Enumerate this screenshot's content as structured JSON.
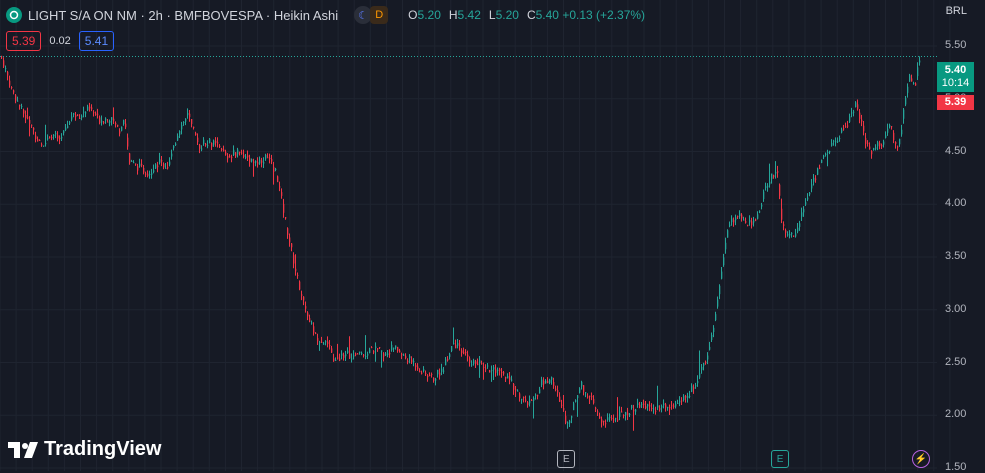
{
  "header": {
    "title": "LIGHT S/A ON NM · 2h · BMFBOVESPA · Heikin Ashi",
    "market_icon_1": "moon-icon",
    "market_icon_2": "D",
    "ohlc": [
      {
        "k": "O",
        "v": "5.20"
      },
      {
        "k": "H",
        "v": "5.42"
      },
      {
        "k": "L",
        "v": "5.20"
      },
      {
        "k": "C",
        "v": "5.40 +0.13 (+2.37%)"
      }
    ]
  },
  "trade": {
    "sell": "5.39",
    "spread": "0.02",
    "buy": "5.41"
  },
  "currency": "BRL",
  "price_labels": {
    "last": "5.40",
    "countdown": "10:14",
    "bid": "5.39"
  },
  "events": [
    {
      "label": "E",
      "x": 0.574
    },
    {
      "label": "E",
      "x": 0.791
    },
    {
      "label": "⚡",
      "x": 0.934
    }
  ],
  "brand": "TradingView",
  "colors": {
    "up": "#26a69a",
    "down": "#f23645",
    "bg": "#161a25",
    "grid": "#1f2430"
  },
  "chart_data": {
    "type": "candlestick",
    "style": "Heikin Ashi",
    "y_ticks": [
      "5.50",
      "5.00",
      "4.50",
      "4.00",
      "3.50",
      "3.00",
      "2.50",
      "2.00",
      "1.50"
    ],
    "ylim": [
      1.5,
      5.5
    ],
    "last_price": 5.4,
    "path": [
      [
        0,
        5.4
      ],
      [
        0.01,
        5.1
      ],
      [
        0.02,
        4.9
      ],
      [
        0.03,
        4.75
      ],
      [
        0.04,
        4.55
      ],
      [
        0.05,
        4.68
      ],
      [
        0.06,
        4.6
      ],
      [
        0.07,
        4.82
      ],
      [
        0.08,
        4.85
      ],
      [
        0.09,
        4.9
      ],
      [
        0.1,
        4.8
      ],
      [
        0.11,
        4.82
      ],
      [
        0.12,
        4.7
      ],
      [
        0.125,
        4.85
      ],
      [
        0.13,
        4.4
      ],
      [
        0.14,
        4.35
      ],
      [
        0.15,
        4.3
      ],
      [
        0.16,
        4.4
      ],
      [
        0.17,
        4.35
      ],
      [
        0.18,
        4.7
      ],
      [
        0.19,
        4.85
      ],
      [
        0.2,
        4.55
      ],
      [
        0.21,
        4.6
      ],
      [
        0.22,
        4.55
      ],
      [
        0.23,
        4.45
      ],
      [
        0.24,
        4.5
      ],
      [
        0.25,
        4.45
      ],
      [
        0.26,
        4.4
      ],
      [
        0.27,
        4.45
      ],
      [
        0.28,
        4.3
      ],
      [
        0.29,
        3.8
      ],
      [
        0.3,
        3.35
      ],
      [
        0.31,
        3.0
      ],
      [
        0.32,
        2.75
      ],
      [
        0.33,
        2.7
      ],
      [
        0.34,
        2.5
      ],
      [
        0.35,
        2.6
      ],
      [
        0.36,
        2.55
      ],
      [
        0.37,
        2.6
      ],
      [
        0.38,
        2.62
      ],
      [
        0.39,
        2.58
      ],
      [
        0.4,
        2.65
      ],
      [
        0.41,
        2.55
      ],
      [
        0.42,
        2.5
      ],
      [
        0.43,
        2.4
      ],
      [
        0.44,
        2.35
      ],
      [
        0.45,
        2.45
      ],
      [
        0.46,
        2.7
      ],
      [
        0.47,
        2.58
      ],
      [
        0.48,
        2.5
      ],
      [
        0.49,
        2.48
      ],
      [
        0.5,
        2.42
      ],
      [
        0.51,
        2.38
      ],
      [
        0.52,
        2.3
      ],
      [
        0.53,
        2.15
      ],
      [
        0.54,
        2.1
      ],
      [
        0.55,
        2.3
      ],
      [
        0.56,
        2.35
      ],
      [
        0.57,
        2.1
      ],
      [
        0.575,
        1.95
      ],
      [
        0.58,
        2.0
      ],
      [
        0.59,
        2.3
      ],
      [
        0.6,
        2.15
      ],
      [
        0.61,
        1.95
      ],
      [
        0.62,
        1.95
      ],
      [
        0.63,
        2.0
      ],
      [
        0.64,
        2.05
      ],
      [
        0.65,
        2.1
      ],
      [
        0.66,
        2.08
      ],
      [
        0.67,
        2.05
      ],
      [
        0.68,
        2.1
      ],
      [
        0.69,
        2.1
      ],
      [
        0.7,
        2.2
      ],
      [
        0.71,
        2.35
      ],
      [
        0.72,
        2.6
      ],
      [
        0.73,
        3.1
      ],
      [
        0.735,
        3.5
      ],
      [
        0.74,
        3.8
      ],
      [
        0.75,
        3.9
      ],
      [
        0.76,
        3.8
      ],
      [
        0.77,
        3.9
      ],
      [
        0.78,
        4.2
      ],
      [
        0.79,
        4.35
      ],
      [
        0.795,
        3.8
      ],
      [
        0.8,
        3.7
      ],
      [
        0.81,
        3.75
      ],
      [
        0.82,
        4.05
      ],
      [
        0.83,
        4.3
      ],
      [
        0.84,
        4.5
      ],
      [
        0.85,
        4.6
      ],
      [
        0.86,
        4.75
      ],
      [
        0.87,
        4.95
      ],
      [
        0.875,
        4.8
      ],
      [
        0.88,
        4.6
      ],
      [
        0.885,
        4.5
      ],
      [
        0.89,
        4.55
      ],
      [
        0.9,
        4.6
      ],
      [
        0.905,
        4.8
      ],
      [
        0.91,
        4.55
      ],
      [
        0.915,
        4.6
      ],
      [
        0.92,
        5.0
      ],
      [
        0.925,
        5.2
      ],
      [
        0.93,
        5.1
      ],
      [
        0.935,
        5.4
      ]
    ]
  }
}
